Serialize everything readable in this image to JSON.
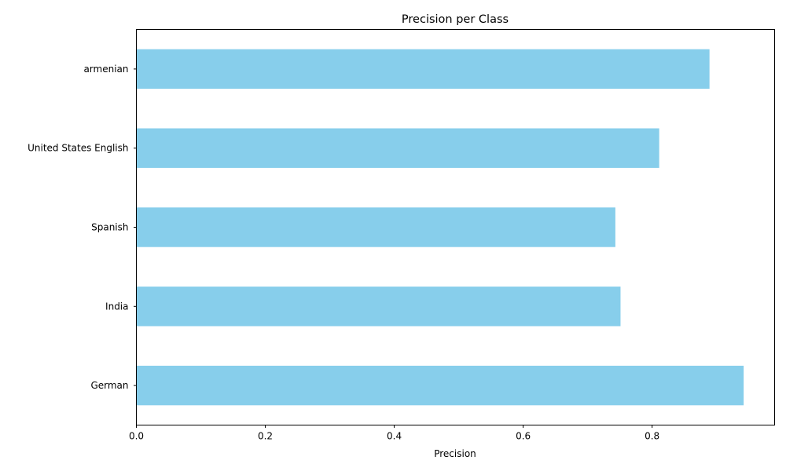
{
  "chart_data": {
    "type": "bar",
    "orientation": "horizontal",
    "title": "Precision per Class",
    "xlabel": "Precision",
    "ylabel": "",
    "categories": [
      "armenian",
      "United States English",
      "Spanish",
      "India",
      "German"
    ],
    "values": [
      0.889,
      0.811,
      0.743,
      0.751,
      0.942
    ],
    "xlim": [
      0.0,
      0.99
    ],
    "xticks": [
      "0.0",
      "0.2",
      "0.4",
      "0.6",
      "0.8"
    ],
    "bar_color": "#87ceeb",
    "grid": false,
    "legend": "none"
  }
}
